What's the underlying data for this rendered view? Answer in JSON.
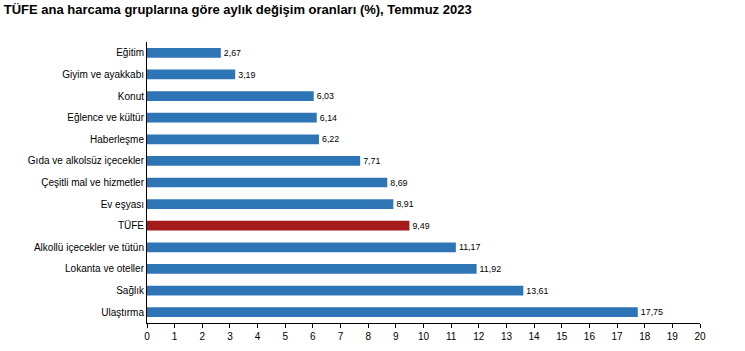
{
  "chart_data": {
    "type": "bar",
    "orientation": "horizontal",
    "title": "TÜFE ana harcama gruplarına göre aylık değişim oranları (%), Temmuz 2023",
    "categories": [
      "Eğitim",
      "Giyim ve ayakkabı",
      "Konut",
      "Eğlence ve kültür",
      "Haberleşme",
      "Gıda ve alkolsüz içecekler",
      "Çeşitli mal ve hizmetler",
      "Ev eşyası",
      "TÜFE",
      "Alkollü içecekler ve tütün",
      "Lokanta ve oteller",
      "Sağlık",
      "Ulaştırma"
    ],
    "values": [
      2.67,
      3.19,
      6.03,
      6.14,
      6.22,
      7.71,
      8.69,
      8.91,
      9.49,
      11.17,
      11.92,
      13.61,
      17.75
    ],
    "value_labels": [
      "2,67",
      "3,19",
      "6,03",
      "6,14",
      "6,22",
      "7,71",
      "8,69",
      "8,91",
      "9,49",
      "11,17",
      "11,92",
      "13,61",
      "17,75"
    ],
    "colors": [
      "#2E75B6",
      "#2E75B6",
      "#2E75B6",
      "#2E75B6",
      "#2E75B6",
      "#2E75B6",
      "#2E75B6",
      "#2E75B6",
      "#A31B1B",
      "#2E75B6",
      "#2E75B6",
      "#2E75B6",
      "#2E75B6"
    ],
    "xlim": [
      0,
      20
    ],
    "xticks": [
      0,
      1,
      2,
      3,
      4,
      5,
      6,
      7,
      8,
      9,
      10,
      11,
      12,
      13,
      14,
      15,
      16,
      17,
      18,
      19,
      20
    ],
    "grid": false,
    "data_labels": true
  }
}
